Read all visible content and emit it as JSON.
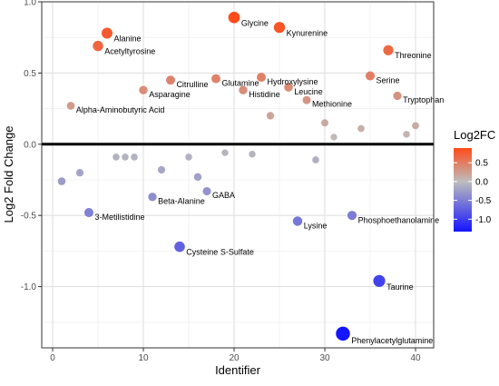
{
  "chart_data": {
    "type": "scatter",
    "xlabel": "Identifier",
    "ylabel": "Log2 Fold Change",
    "xlim": [
      -1.2,
      42
    ],
    "ylim": [
      -1.43,
      1.0
    ],
    "xticks": [
      0,
      10,
      20,
      30,
      40
    ],
    "yticks": [
      1.0,
      0.5,
      0.0,
      -0.5,
      -1.0
    ],
    "ytick_labels": [
      "1.0",
      "0.5",
      "0.0",
      "-0.5",
      "-1.0"
    ],
    "grid": true,
    "reference_line": 0,
    "legend": {
      "title": "Log2FC",
      "placement": "right",
      "ticks": [
        0.5,
        0.0,
        -0.5,
        -1.0
      ],
      "tick_labels": [
        "0.5",
        "0.0",
        "-0.5",
        "-1.0"
      ],
      "range": [
        -1.33,
        0.89
      ],
      "color_low": "#1414ff",
      "color_mid": "#bdbdbd",
      "color_high": "#ff4b1a"
    },
    "points": [
      {
        "x": 1,
        "y": -0.26,
        "label": ""
      },
      {
        "x": 2,
        "y": 0.27,
        "label": "Alpha-Aminobutyric  Acid"
      },
      {
        "x": 3,
        "y": -0.2,
        "label": ""
      },
      {
        "x": 4,
        "y": -0.48,
        "label": "3-Metilistidine"
      },
      {
        "x": 5,
        "y": 0.69,
        "label": "Acetyltyrosine"
      },
      {
        "x": 6,
        "y": 0.78,
        "label": "Alanine"
      },
      {
        "x": 7,
        "y": -0.09,
        "label": ""
      },
      {
        "x": 8,
        "y": -0.09,
        "label": ""
      },
      {
        "x": 9,
        "y": -0.09,
        "label": ""
      },
      {
        "x": 10,
        "y": 0.38,
        "label": "Asparagine"
      },
      {
        "x": 11,
        "y": -0.37,
        "label": "Beta-Alanine"
      },
      {
        "x": 12,
        "y": -0.18,
        "label": ""
      },
      {
        "x": 13,
        "y": 0.45,
        "label": "Citrulline"
      },
      {
        "x": 14,
        "y": -0.72,
        "label": "Cysteine S-Sulfate"
      },
      {
        "x": 15,
        "y": -0.09,
        "label": ""
      },
      {
        "x": 16,
        "y": -0.23,
        "label": ""
      },
      {
        "x": 17,
        "y": -0.33,
        "label": "GABA"
      },
      {
        "x": 18,
        "y": 0.46,
        "label": "Glutamine"
      },
      {
        "x": 19,
        "y": -0.06,
        "label": ""
      },
      {
        "x": 20,
        "y": 0.89,
        "label": "Glycine"
      },
      {
        "x": 21,
        "y": 0.38,
        "label": "Histidine"
      },
      {
        "x": 22,
        "y": -0.07,
        "label": ""
      },
      {
        "x": 23,
        "y": 0.47,
        "label": "Hydroxylysine"
      },
      {
        "x": 24,
        "y": 0.2,
        "label": ""
      },
      {
        "x": 25,
        "y": 0.82,
        "label": "Kynurenine"
      },
      {
        "x": 26,
        "y": 0.4,
        "label": "Leucine"
      },
      {
        "x": 27,
        "y": -0.54,
        "label": "Lysine"
      },
      {
        "x": 28,
        "y": 0.31,
        "label": "Methionine"
      },
      {
        "x": 29,
        "y": -0.11,
        "label": ""
      },
      {
        "x": 30,
        "y": 0.15,
        "label": ""
      },
      {
        "x": 31,
        "y": 0.05,
        "label": ""
      },
      {
        "x": 32,
        "y": -1.33,
        "label": "Phenylacetylglutamine"
      },
      {
        "x": 33,
        "y": -0.5,
        "label": "Phosphoethanolamine"
      },
      {
        "x": 34,
        "y": 0.11,
        "label": ""
      },
      {
        "x": 35,
        "y": 0.48,
        "label": "Serine"
      },
      {
        "x": 36,
        "y": -0.96,
        "label": "Taurine"
      },
      {
        "x": 37,
        "y": 0.66,
        "label": "Threonine"
      },
      {
        "x": 38,
        "y": 0.34,
        "label": "Tryptophan"
      },
      {
        "x": 39,
        "y": 0.07,
        "label": ""
      },
      {
        "x": 40,
        "y": 0.13,
        "label": ""
      }
    ]
  }
}
